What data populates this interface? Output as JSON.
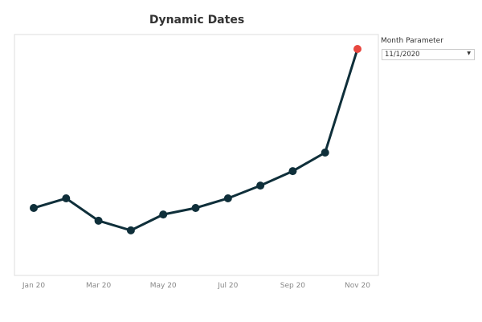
{
  "chart_data": {
    "type": "line",
    "title": "Dynamic Dates",
    "categories": [
      "Jan 20",
      "Feb 20",
      "Mar 20",
      "Apr 20",
      "May 20",
      "Jun 20",
      "Jul 20",
      "Aug 20",
      "Sep 20",
      "Oct 20",
      "Nov 20"
    ],
    "tick_labels": [
      "Jan 20",
      "Mar 20",
      "May 20",
      "Jul 20",
      "Sep 20",
      "Nov 20"
    ],
    "values": [
      28,
      32,
      22.7,
      18.7,
      25.3,
      28,
      32,
      37.3,
      43.3,
      51,
      94
    ],
    "ylim": [
      0,
      100
    ],
    "y_axis_labels_shown": false,
    "grid": false,
    "line_color": "#0f2f3a",
    "highlight_color": "#e8473f",
    "highlight_category": "Nov 20"
  },
  "parameter": {
    "label": "Month Parameter",
    "value": "11/1/2020",
    "arrow": "▼"
  }
}
